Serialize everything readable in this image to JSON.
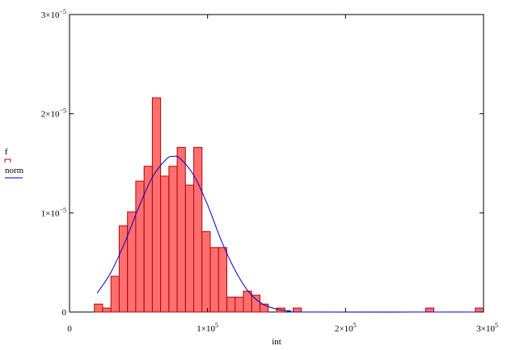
{
  "chart_data": {
    "type": "bar",
    "xlabel": "int",
    "ylabel": "",
    "x_tick_labels": [
      "0",
      "1×10",
      "2×10",
      "3×10"
    ],
    "x_tick_exponents": [
      "",
      "5",
      "5",
      "5"
    ],
    "x_ticks": [
      0,
      100000,
      200000,
      300000
    ],
    "y_tick_labels": [
      "0",
      "1×10",
      "2×10",
      "3×10"
    ],
    "y_tick_exponents": [
      "",
      "−5",
      "−5",
      "−5"
    ],
    "y_ticks": [
      0,
      1e-05,
      2e-05,
      3e-05
    ],
    "xlim": [
      0,
      300000
    ],
    "ylim": [
      0,
      3e-05
    ],
    "bin_width": 6000,
    "series": [
      {
        "name": "f",
        "kind": "histogram",
        "color": "#ff6f6f",
        "edge_color": "#c00000",
        "bins": [
          {
            "x": 18000,
            "y": 8e-07
          },
          {
            "x": 24000,
            "y": 4e-07
          },
          {
            "x": 30000,
            "y": 3.6e-06
          },
          {
            "x": 36000,
            "y": 8.7e-06
          },
          {
            "x": 42000,
            "y": 1.01e-05
          },
          {
            "x": 48000,
            "y": 1.32e-05
          },
          {
            "x": 54000,
            "y": 1.47e-05
          },
          {
            "x": 60000,
            "y": 2.16e-05
          },
          {
            "x": 66000,
            "y": 1.37e-05
          },
          {
            "x": 72000,
            "y": 1.47e-05
          },
          {
            "x": 78000,
            "y": 1.66e-05
          },
          {
            "x": 84000,
            "y": 1.28e-05
          },
          {
            "x": 90000,
            "y": 1.66e-05
          },
          {
            "x": 96000,
            "y": 8.1e-06
          },
          {
            "x": 102000,
            "y": 6.5e-06
          },
          {
            "x": 108000,
            "y": 6.5e-06
          },
          {
            "x": 114000,
            "y": 1.5e-06
          },
          {
            "x": 120000,
            "y": 1.5e-06
          },
          {
            "x": 126000,
            "y": 2.1e-06
          },
          {
            "x": 132000,
            "y": 1.7e-06
          },
          {
            "x": 138000,
            "y": 8e-07
          },
          {
            "x": 144000,
            "y": 0.0
          },
          {
            "x": 150000,
            "y": 4e-07
          },
          {
            "x": 156000,
            "y": 0.0
          },
          {
            "x": 162000,
            "y": 4e-07
          },
          {
            "x": 258000,
            "y": 4e-07
          },
          {
            "x": 294000,
            "y": 4e-07
          }
        ]
      },
      {
        "name": "norm",
        "kind": "line",
        "color": "#0000cc",
        "points": [
          [
            20000,
            1.9e-06
          ],
          [
            30000,
            4e-06
          ],
          [
            40000,
            7e-06
          ],
          [
            50000,
            1.05e-05
          ],
          [
            60000,
            1.36e-05
          ],
          [
            70000,
            1.54e-05
          ],
          [
            75000,
            1.57e-05
          ],
          [
            80000,
            1.55e-05
          ],
          [
            90000,
            1.38e-05
          ],
          [
            100000,
            1.08e-05
          ],
          [
            110000,
            7.2e-06
          ],
          [
            120000,
            4.2e-06
          ],
          [
            130000,
            2e-06
          ],
          [
            140000,
            8e-07
          ],
          [
            150000,
            3e-07
          ],
          [
            160000,
            1e-07
          ],
          [
            170000,
            0.0
          ],
          [
            300000,
            0.0
          ]
        ]
      }
    ],
    "legend": {
      "placement": "left",
      "entries": [
        "f",
        "norm"
      ]
    }
  }
}
